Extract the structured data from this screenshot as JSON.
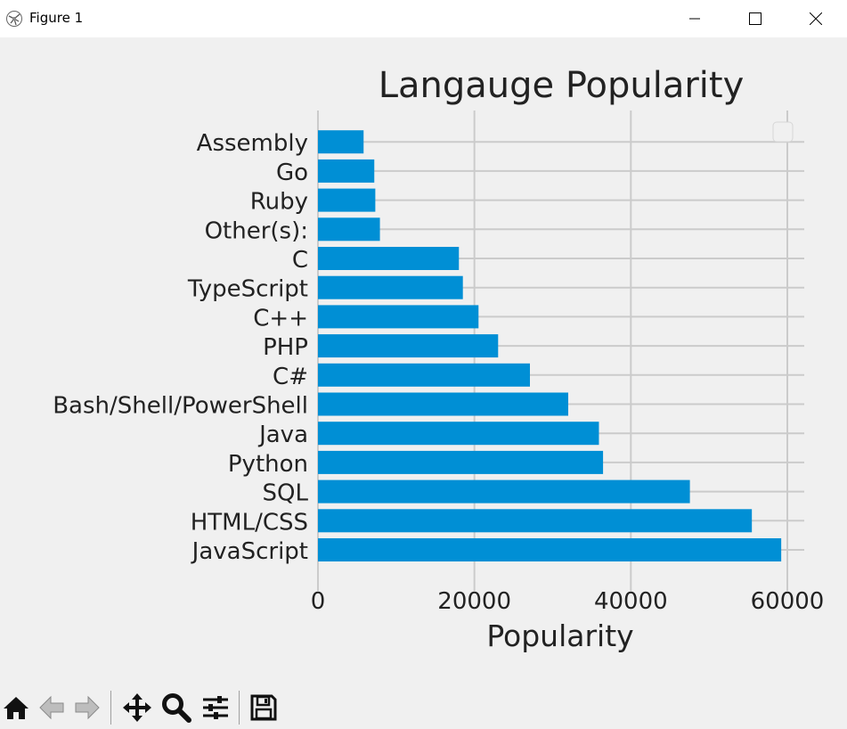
{
  "window": {
    "title": "Figure 1"
  },
  "colors": {
    "bar": "#008fd5",
    "grid": "#cbcbcb",
    "background": "#f0f0f0"
  },
  "toolbar": {
    "buttons": [
      "home-icon",
      "back-arrow-icon",
      "forward-arrow-icon",
      "pan-icon",
      "zoom-icon",
      "configure-subplots-icon",
      "save-icon"
    ]
  },
  "chart_data": {
    "type": "bar",
    "orientation": "horizontal",
    "title": "Langauge Popularity",
    "xlabel": "Popularity",
    "ylabel": "",
    "xlim": [
      0,
      62000
    ],
    "xticks": [
      0,
      20000,
      40000,
      60000
    ],
    "xtick_labels": [
      "0",
      "20000",
      "40000",
      "60000"
    ],
    "grid": true,
    "legend": "top-right (empty)",
    "categories": [
      "JavaScript",
      "HTML/CSS",
      "SQL",
      "Python",
      "Java",
      "Bash/Shell/PowerShell",
      "C#",
      "PHP",
      "C++",
      "TypeScript",
      "C",
      "Other(s):",
      "Ruby",
      "Go",
      "Assembly"
    ],
    "values": [
      59219,
      55466,
      47544,
      36443,
      35917,
      31991,
      27097,
      23030,
      20524,
      18523,
      18017,
      7920,
      7331,
      7201,
      5833
    ]
  }
}
